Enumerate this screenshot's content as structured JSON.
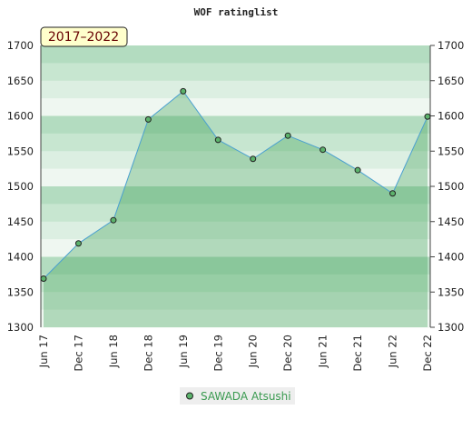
{
  "chart_data": {
    "type": "area",
    "title": "WOF ratinglist",
    "badge": "2017–2022",
    "categories": [
      "Jun 17",
      "Dec 17",
      "Jun 18",
      "Dec 18",
      "Jun 19",
      "Dec 19",
      "Jun 20",
      "Dec 20",
      "Jun 21",
      "Dec 21",
      "Jun 22",
      "Dec 22"
    ],
    "series": [
      {
        "name": "SAWADA Atsushi",
        "color": "#4aa0d0",
        "values": [
          1369,
          1419,
          1452,
          1595,
          1635,
          1566,
          1539,
          1572,
          1552,
          1523,
          1490,
          1599
        ]
      }
    ],
    "ylim": [
      1300,
      1700
    ],
    "yticks": [
      1300,
      1350,
      1400,
      1450,
      1500,
      1550,
      1600,
      1650,
      1700
    ]
  }
}
